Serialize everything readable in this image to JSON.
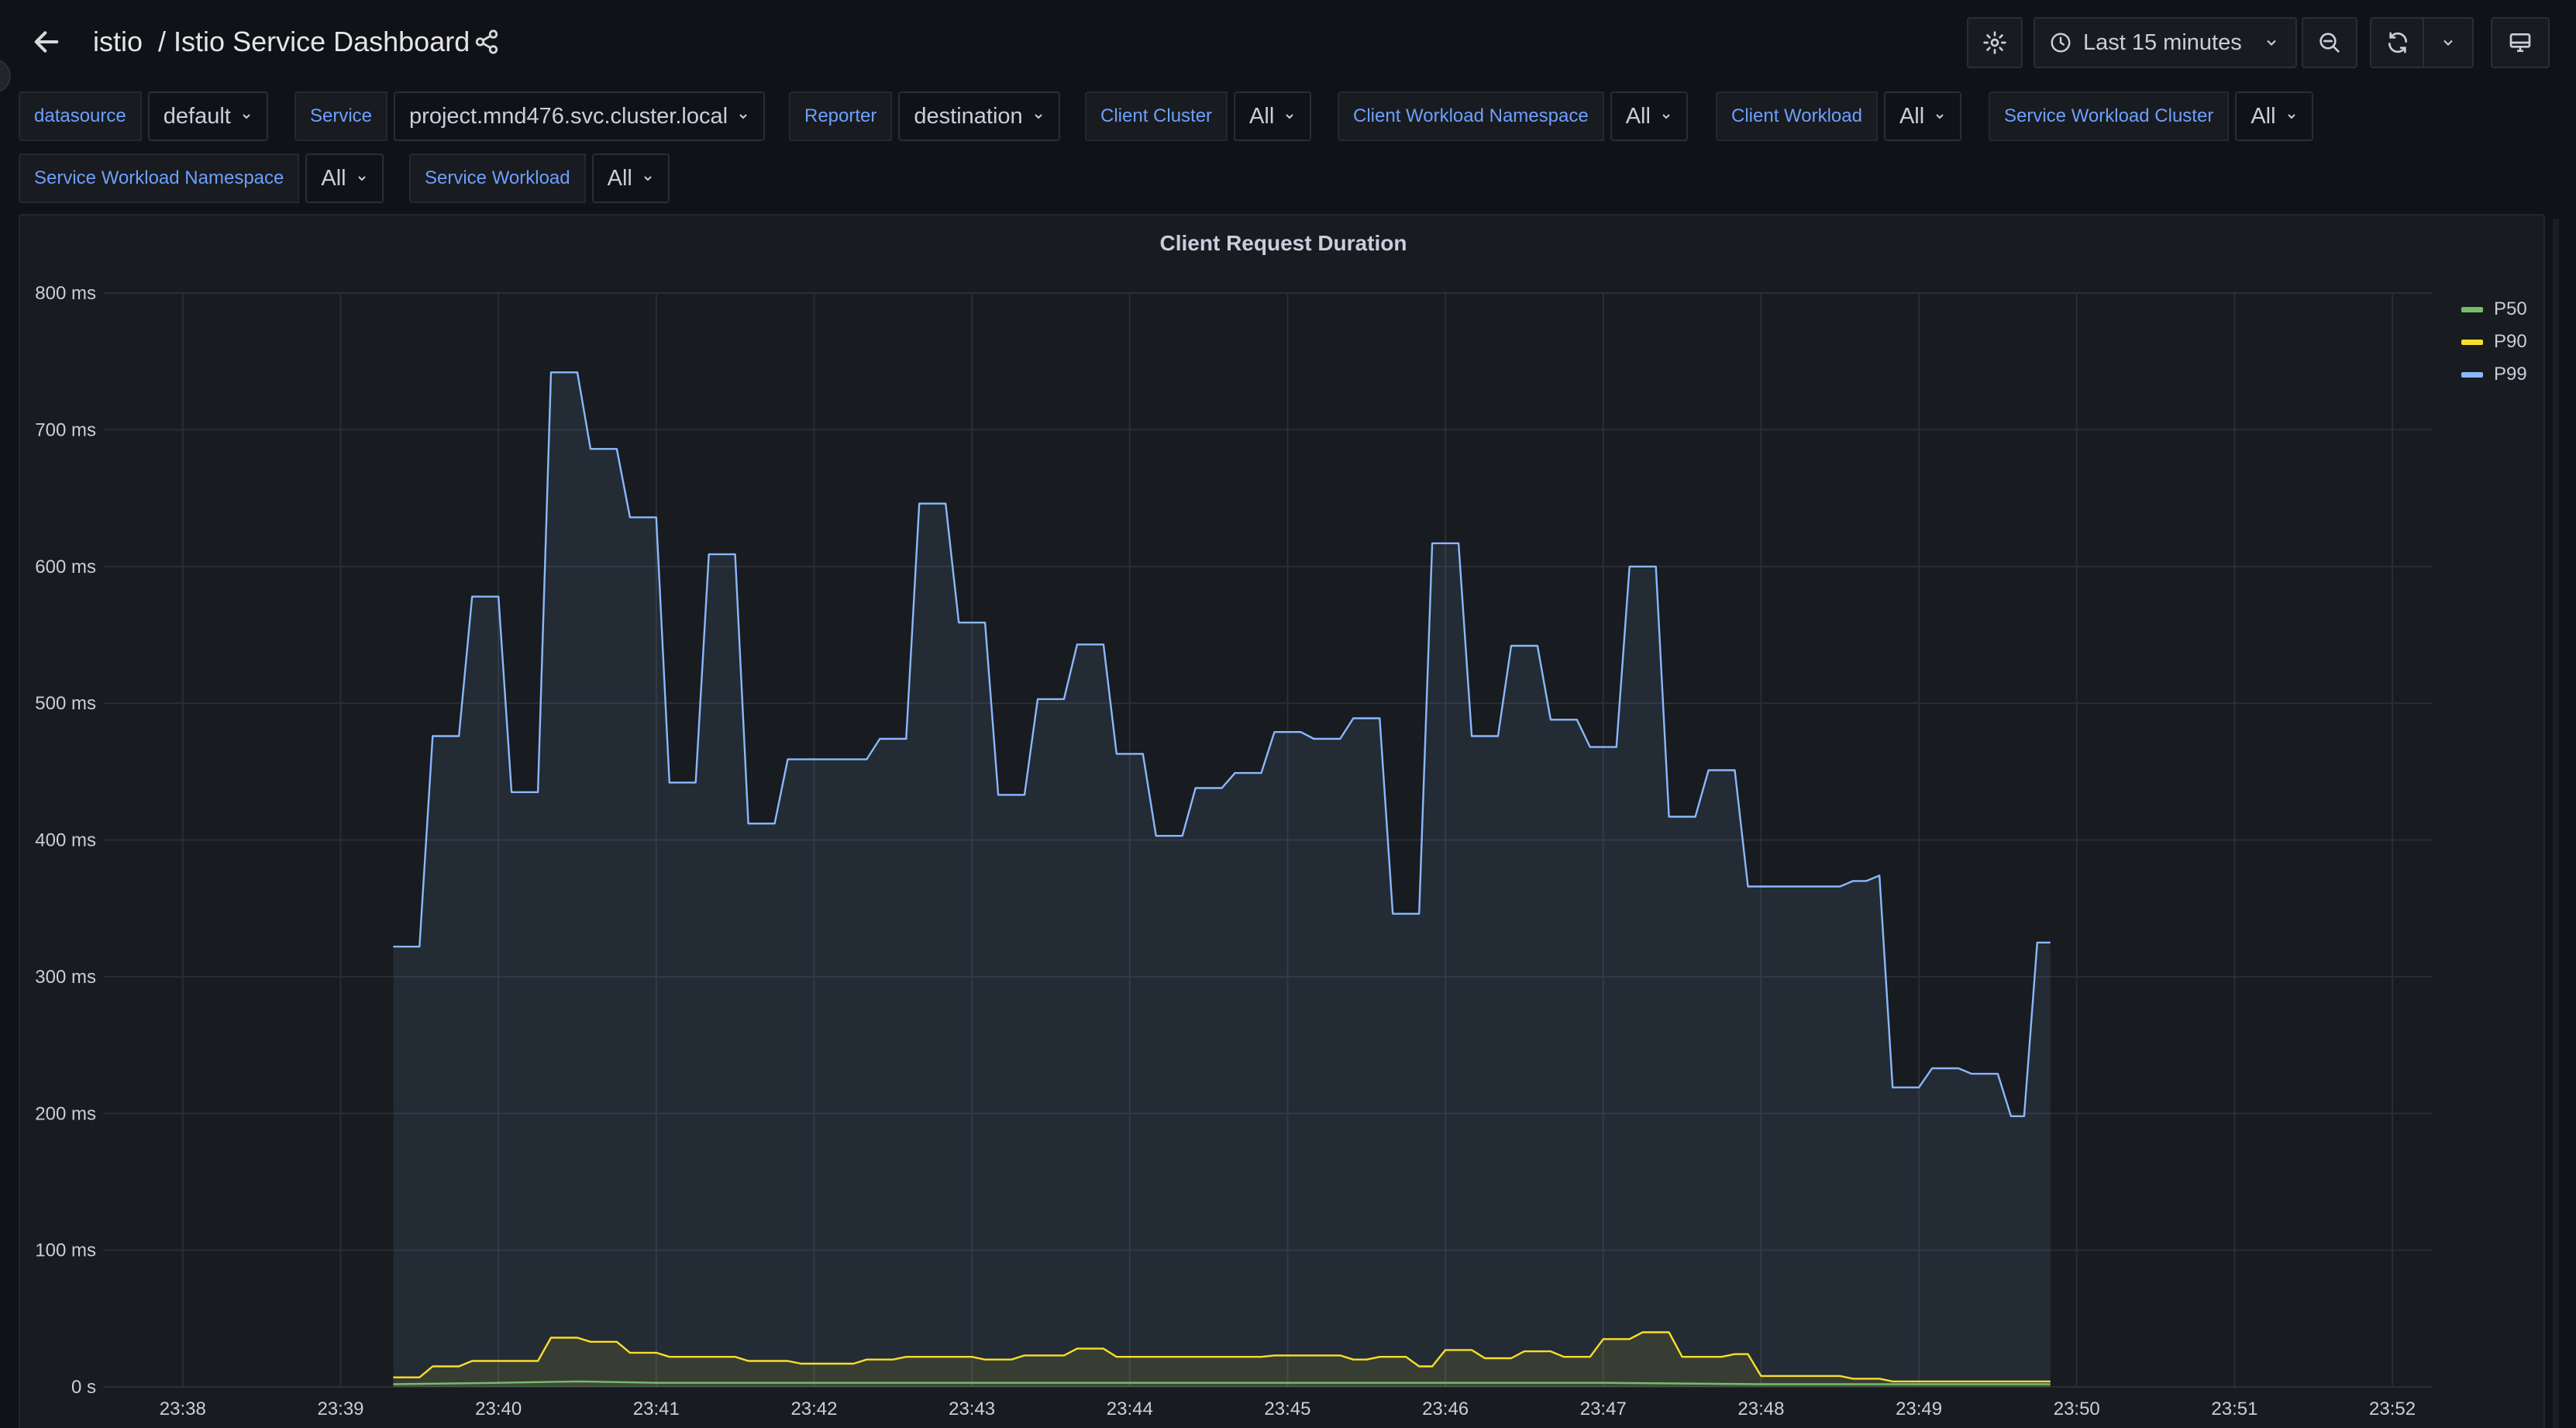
{
  "nav": {
    "folder": "istio",
    "separator": "/",
    "dashboard_title": "Istio Service Dashboard",
    "time_range": "Last 15 minutes"
  },
  "variables": [
    {
      "label": "datasource",
      "value": "default"
    },
    {
      "label": "Service",
      "value": "project.mnd476.svc.cluster.local"
    },
    {
      "label": "Reporter",
      "value": "destination"
    },
    {
      "label": "Client Cluster",
      "value": "All"
    },
    {
      "label": "Client Workload Namespace",
      "value": "All"
    },
    {
      "label": "Client Workload",
      "value": "All"
    },
    {
      "label": "Service Workload Cluster",
      "value": "All"
    },
    {
      "label": "Service Workload Namespace",
      "value": "All"
    },
    {
      "label": "Service Workload",
      "value": "All"
    }
  ],
  "colors": {
    "p50": "#73bf69",
    "p90": "#fade2a",
    "p99": "#8ab8ff",
    "accent_label": "#6e9fff"
  },
  "chart_data": {
    "type": "line",
    "title": "Client Request Duration",
    "y_unit": "ms",
    "ylim": [
      0,
      800
    ],
    "y_ticks": [
      "0 s",
      "100 ms",
      "200 ms",
      "300 ms",
      "400 ms",
      "500 ms",
      "600 ms",
      "700 ms",
      "800 ms"
    ],
    "x_ticks": [
      "23:38",
      "23:39",
      "23:40",
      "23:41",
      "23:42",
      "23:43",
      "23:44",
      "23:45",
      "23:46",
      "23:47",
      "23:48",
      "23:49",
      "23:50",
      "23:51",
      "23:52"
    ],
    "x_range": [
      "23:37:30",
      "23:52:15"
    ],
    "grid": true,
    "legend_position": "top-right",
    "series": [
      {
        "name": "P50",
        "color": "#73bf69",
        "points": [
          [
            "23:39:20",
            2
          ],
          [
            "23:40:00",
            3
          ],
          [
            "23:40:30",
            4
          ],
          [
            "23:41:00",
            3
          ],
          [
            "23:42:00",
            3
          ],
          [
            "23:43:00",
            3
          ],
          [
            "23:44:00",
            3
          ],
          [
            "23:45:00",
            3
          ],
          [
            "23:46:00",
            3
          ],
          [
            "23:47:00",
            3
          ],
          [
            "23:48:00",
            2
          ],
          [
            "23:49:00",
            2
          ],
          [
            "23:49:50",
            2
          ]
        ]
      },
      {
        "name": "P90",
        "color": "#fade2a",
        "points": [
          [
            "23:39:20",
            7
          ],
          [
            "23:39:30",
            7
          ],
          [
            "23:39:35",
            15
          ],
          [
            "23:39:45",
            15
          ],
          [
            "23:39:50",
            19
          ],
          [
            "23:40:15",
            19
          ],
          [
            "23:40:20",
            36
          ],
          [
            "23:40:30",
            36
          ],
          [
            "23:40:35",
            33
          ],
          [
            "23:40:45",
            33
          ],
          [
            "23:40:50",
            25
          ],
          [
            "23:41:00",
            25
          ],
          [
            "23:41:05",
            22
          ],
          [
            "23:41:30",
            22
          ],
          [
            "23:41:35",
            19
          ],
          [
            "23:41:50",
            19
          ],
          [
            "23:41:55",
            17
          ],
          [
            "23:42:15",
            17
          ],
          [
            "23:42:20",
            20
          ],
          [
            "23:42:30",
            20
          ],
          [
            "23:42:35",
            22
          ],
          [
            "23:43:00",
            22
          ],
          [
            "23:43:05",
            20
          ],
          [
            "23:43:15",
            20
          ],
          [
            "23:43:20",
            23
          ],
          [
            "23:43:35",
            23
          ],
          [
            "23:43:40",
            28
          ],
          [
            "23:43:50",
            28
          ],
          [
            "23:43:55",
            22
          ],
          [
            "23:44:50",
            22
          ],
          [
            "23:44:55",
            23
          ],
          [
            "23:45:20",
            23
          ],
          [
            "23:45:25",
            20
          ],
          [
            "23:45:30",
            20
          ],
          [
            "23:45:35",
            22
          ],
          [
            "23:45:45",
            22
          ],
          [
            "23:45:50",
            15
          ],
          [
            "23:45:55",
            15
          ],
          [
            "23:46:00",
            27
          ],
          [
            "23:46:10",
            27
          ],
          [
            "23:46:15",
            21
          ],
          [
            "23:46:25",
            21
          ],
          [
            "23:46:30",
            26
          ],
          [
            "23:46:40",
            26
          ],
          [
            "23:46:45",
            22
          ],
          [
            "23:46:55",
            22
          ],
          [
            "23:47:00",
            35
          ],
          [
            "23:47:10",
            35
          ],
          [
            "23:47:15",
            40
          ],
          [
            "23:47:25",
            40
          ],
          [
            "23:47:30",
            22
          ],
          [
            "23:47:45",
            22
          ],
          [
            "23:47:50",
            24
          ],
          [
            "23:47:55",
            24
          ],
          [
            "23:48:00",
            8
          ],
          [
            "23:48:30",
            8
          ],
          [
            "23:48:35",
            6
          ],
          [
            "23:48:45",
            6
          ],
          [
            "23:48:50",
            4
          ],
          [
            "23:49:50",
            4
          ]
        ]
      },
      {
        "name": "P99",
        "color": "#8ab8ff",
        "points": [
          [
            "23:39:20",
            322
          ],
          [
            "23:39:30",
            322
          ],
          [
            "23:39:35",
            476
          ],
          [
            "23:39:45",
            476
          ],
          [
            "23:39:50",
            578
          ],
          [
            "23:40:00",
            578
          ],
          [
            "23:40:05",
            435
          ],
          [
            "23:40:15",
            435
          ],
          [
            "23:40:20",
            742
          ],
          [
            "23:40:30",
            742
          ],
          [
            "23:40:35",
            686
          ],
          [
            "23:40:45",
            686
          ],
          [
            "23:40:50",
            636
          ],
          [
            "23:41:00",
            636
          ],
          [
            "23:41:05",
            442
          ],
          [
            "23:41:15",
            442
          ],
          [
            "23:41:20",
            609
          ],
          [
            "23:41:30",
            609
          ],
          [
            "23:41:35",
            412
          ],
          [
            "23:41:45",
            412
          ],
          [
            "23:41:50",
            459
          ],
          [
            "23:42:20",
            459
          ],
          [
            "23:42:25",
            474
          ],
          [
            "23:42:35",
            474
          ],
          [
            "23:42:40",
            646
          ],
          [
            "23:42:50",
            646
          ],
          [
            "23:42:55",
            559
          ],
          [
            "23:43:05",
            559
          ],
          [
            "23:43:10",
            433
          ],
          [
            "23:43:20",
            433
          ],
          [
            "23:43:25",
            503
          ],
          [
            "23:43:35",
            503
          ],
          [
            "23:43:40",
            543
          ],
          [
            "23:43:50",
            543
          ],
          [
            "23:43:55",
            463
          ],
          [
            "23:44:05",
            463
          ],
          [
            "23:44:10",
            403
          ],
          [
            "23:44:20",
            403
          ],
          [
            "23:44:25",
            438
          ],
          [
            "23:44:35",
            438
          ],
          [
            "23:44:40",
            449
          ],
          [
            "23:44:50",
            449
          ],
          [
            "23:44:55",
            479
          ],
          [
            "23:45:05",
            479
          ],
          [
            "23:45:10",
            474
          ],
          [
            "23:45:20",
            474
          ],
          [
            "23:45:25",
            489
          ],
          [
            "23:45:35",
            489
          ],
          [
            "23:45:40",
            346
          ],
          [
            "23:45:50",
            346
          ],
          [
            "23:45:55",
            617
          ],
          [
            "23:46:05",
            617
          ],
          [
            "23:46:10",
            476
          ],
          [
            "23:46:20",
            476
          ],
          [
            "23:46:25",
            542
          ],
          [
            "23:46:35",
            542
          ],
          [
            "23:46:40",
            488
          ],
          [
            "23:46:50",
            488
          ],
          [
            "23:46:55",
            468
          ],
          [
            "23:47:05",
            468
          ],
          [
            "23:47:10",
            600
          ],
          [
            "23:47:20",
            600
          ],
          [
            "23:47:25",
            417
          ],
          [
            "23:47:35",
            417
          ],
          [
            "23:47:40",
            451
          ],
          [
            "23:47:50",
            451
          ],
          [
            "23:47:55",
            366
          ],
          [
            "23:48:30",
            366
          ],
          [
            "23:48:35",
            370
          ],
          [
            "23:48:40",
            370
          ],
          [
            "23:48:45",
            374
          ],
          [
            "23:48:50",
            219
          ],
          [
            "23:49:00",
            219
          ],
          [
            "23:49:05",
            233
          ],
          [
            "23:49:15",
            233
          ],
          [
            "23:49:20",
            229
          ],
          [
            "23:49:30",
            229
          ],
          [
            "23:49:35",
            198
          ],
          [
            "23:49:40",
            198
          ],
          [
            "23:49:45",
            325
          ],
          [
            "23:49:50",
            325
          ]
        ]
      }
    ]
  }
}
